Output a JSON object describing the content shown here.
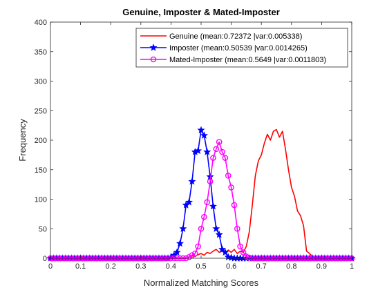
{
  "chart_data": {
    "type": "line",
    "title": "Genuine, Imposter & Mated-Imposter",
    "xlabel": "Normalized Matching Scores",
    "ylabel": "Frequency",
    "xlim": [
      0,
      1
    ],
    "ylim": [
      0,
      400
    ],
    "xticks": [
      "0",
      "0.1",
      "0.2",
      "0.3",
      "0.4",
      "0.5",
      "0.6",
      "0.7",
      "0.8",
      "0.9",
      "1"
    ],
    "yticks": [
      "0",
      "50",
      "100",
      "150",
      "200",
      "250",
      "300",
      "350",
      "400"
    ],
    "grid": false,
    "legend_position": "top-right",
    "series": [
      {
        "name": "Genuine (mean:0.72372 |var:0.005338)",
        "color": "#ff0000",
        "marker": "none",
        "x": [
          0,
          0.1,
          0.2,
          0.3,
          0.4,
          0.45,
          0.46,
          0.47,
          0.48,
          0.49,
          0.5,
          0.51,
          0.52,
          0.53,
          0.54,
          0.55,
          0.56,
          0.57,
          0.58,
          0.59,
          0.6,
          0.61,
          0.62,
          0.63,
          0.64,
          0.65,
          0.66,
          0.67,
          0.68,
          0.69,
          0.7,
          0.71,
          0.72,
          0.73,
          0.74,
          0.75,
          0.76,
          0.77,
          0.78,
          0.79,
          0.8,
          0.81,
          0.82,
          0.83,
          0.84,
          0.85,
          0.86,
          0.87,
          0.88,
          0.9,
          1.0
        ],
        "y": [
          0,
          0,
          0,
          0,
          0,
          0,
          2,
          4,
          3,
          6,
          8,
          5,
          10,
          8,
          12,
          15,
          10,
          12,
          8,
          14,
          10,
          15,
          8,
          12,
          10,
          20,
          45,
          90,
          140,
          165,
          175,
          195,
          210,
          200,
          215,
          218,
          205,
          215,
          185,
          150,
          120,
          105,
          80,
          72,
          55,
          12,
          8,
          3,
          2,
          0,
          0
        ]
      },
      {
        "name": "Imposter (mean:0.50539 |var:0.0014265)",
        "color": "#0000ff",
        "marker": "star",
        "x": [
          0,
          0.01,
          0.02,
          0.03,
          0.04,
          0.05,
          0.06,
          0.07,
          0.08,
          0.09,
          0.1,
          0.11,
          0.12,
          0.13,
          0.14,
          0.15,
          0.16,
          0.17,
          0.18,
          0.19,
          0.2,
          0.21,
          0.22,
          0.23,
          0.24,
          0.25,
          0.26,
          0.27,
          0.28,
          0.29,
          0.3,
          0.31,
          0.32,
          0.33,
          0.34,
          0.35,
          0.36,
          0.37,
          0.38,
          0.39,
          0.4,
          0.41,
          0.42,
          0.43,
          0.44,
          0.45,
          0.46,
          0.47,
          0.48,
          0.49,
          0.5,
          0.51,
          0.52,
          0.53,
          0.54,
          0.55,
          0.56,
          0.57,
          0.58,
          0.59,
          0.6,
          0.61,
          0.62,
          0.63,
          0.64,
          0.65,
          0.66,
          0.67,
          0.68,
          0.69,
          0.7,
          0.71,
          0.72,
          0.73,
          0.74,
          0.75,
          0.76,
          0.77,
          0.78,
          0.79,
          0.8,
          0.81,
          0.82,
          0.83,
          0.84,
          0.85,
          0.86,
          0.87,
          0.88,
          0.89,
          0.9,
          0.91,
          0.92,
          0.93,
          0.94,
          0.95,
          0.96,
          0.97,
          0.98,
          0.99,
          1.0
        ],
        "y": [
          0,
          0,
          0,
          0,
          0,
          0,
          0,
          0,
          0,
          0,
          0,
          0,
          0,
          0,
          0,
          0,
          0,
          0,
          0,
          0,
          0,
          0,
          0,
          0,
          0,
          0,
          0,
          0,
          0,
          0,
          0,
          0,
          0,
          0,
          0,
          0,
          0,
          0,
          0,
          0,
          2,
          5,
          10,
          25,
          50,
          90,
          95,
          130,
          180,
          182,
          217,
          208,
          180,
          138,
          88,
          50,
          40,
          15,
          10,
          2,
          1,
          0,
          0,
          0,
          0,
          0,
          0,
          0,
          0,
          0,
          0,
          0,
          0,
          0,
          0,
          0,
          0,
          0,
          0,
          0,
          0,
          0,
          0,
          0,
          0,
          0,
          0,
          0,
          0,
          0,
          0,
          0,
          0,
          0,
          0,
          0,
          0,
          0,
          0,
          0,
          0
        ]
      },
      {
        "name": "Mated-Imposter (mean:0.5649 |var:0.0011803)",
        "color": "#ff00ff",
        "marker": "circle",
        "x": [
          0,
          0.01,
          0.02,
          0.03,
          0.04,
          0.05,
          0.06,
          0.07,
          0.08,
          0.09,
          0.1,
          0.11,
          0.12,
          0.13,
          0.14,
          0.15,
          0.16,
          0.17,
          0.18,
          0.19,
          0.2,
          0.21,
          0.22,
          0.23,
          0.24,
          0.25,
          0.26,
          0.27,
          0.28,
          0.29,
          0.3,
          0.31,
          0.32,
          0.33,
          0.34,
          0.35,
          0.36,
          0.37,
          0.38,
          0.39,
          0.4,
          0.41,
          0.42,
          0.43,
          0.44,
          0.45,
          0.46,
          0.47,
          0.48,
          0.49,
          0.5,
          0.51,
          0.52,
          0.53,
          0.54,
          0.55,
          0.56,
          0.57,
          0.58,
          0.59,
          0.6,
          0.61,
          0.62,
          0.63,
          0.64,
          0.65,
          0.66,
          0.67,
          0.68,
          0.69,
          0.7,
          0.71,
          0.72,
          0.73,
          0.74,
          0.75,
          0.76,
          0.77,
          0.78,
          0.79,
          0.8,
          0.81,
          0.82,
          0.83,
          0.84,
          0.85,
          0.86,
          0.87,
          0.88,
          0.89,
          0.9,
          0.91,
          0.92,
          0.93,
          0.94,
          0.95,
          0.96,
          0.97,
          0.98,
          0.99,
          1.0
        ],
        "y": [
          0,
          0,
          0,
          0,
          0,
          0,
          0,
          0,
          0,
          0,
          0,
          0,
          0,
          0,
          0,
          0,
          0,
          0,
          0,
          0,
          0,
          0,
          0,
          0,
          0,
          0,
          0,
          0,
          0,
          0,
          0,
          0,
          0,
          0,
          0,
          0,
          0,
          0,
          0,
          0,
          0,
          0,
          0,
          0,
          0,
          0,
          2,
          5,
          8,
          20,
          50,
          70,
          95,
          130,
          170,
          185,
          197,
          180,
          170,
          140,
          120,
          90,
          50,
          20,
          10,
          3,
          1,
          0,
          0,
          0,
          0,
          0,
          0,
          0,
          0,
          0,
          0,
          0,
          0,
          0,
          0,
          0,
          0,
          0,
          0,
          0,
          0,
          0,
          0,
          0,
          0,
          0,
          0,
          0,
          0,
          0,
          0,
          0,
          0,
          0,
          0
        ]
      }
    ]
  }
}
